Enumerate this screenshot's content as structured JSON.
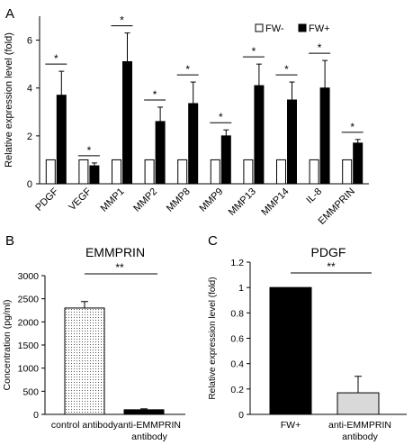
{
  "panels": {
    "a": {
      "letter": "A"
    },
    "b": {
      "letter": "B"
    },
    "c": {
      "letter": "C"
    }
  },
  "colors": {
    "black": "#000000",
    "white": "#ffffff",
    "light_gray": "#d9d9d9"
  },
  "chart_data": [
    {
      "id": "A",
      "type": "bar",
      "title": "",
      "xlabel": "",
      "ylabel": "Relative expression level (fold)",
      "ylim": [
        0,
        7
      ],
      "yticks": [
        "0",
        "2",
        "4",
        "6"
      ],
      "yticks_values": [
        0,
        2,
        4,
        6
      ],
      "grid": false,
      "legend_placement": "top-right",
      "categories": [
        "PDGF",
        "VEGF",
        "MMP1",
        "MMP2",
        "MMP8",
        "MMP9",
        "MMP13",
        "MMP14",
        "IL-8",
        "EMMPRIN"
      ],
      "series": [
        {
          "name": "FW-",
          "fill": "white",
          "values": [
            1,
            1,
            1,
            1,
            1,
            1,
            1,
            1,
            1,
            1
          ]
        },
        {
          "name": "FW+",
          "fill": "black",
          "values": [
            3.7,
            0.75,
            5.1,
            2.6,
            3.35,
            2.0,
            4.1,
            3.5,
            4.0,
            1.7
          ],
          "errors": [
            1.0,
            0.12,
            1.2,
            0.6,
            0.9,
            0.25,
            0.9,
            0.75,
            1.15,
            0.15
          ]
        }
      ],
      "significance": [
        "*",
        "*",
        "*",
        "*",
        "*",
        "*",
        "*",
        "*",
        "*",
        "*"
      ]
    },
    {
      "id": "B",
      "type": "bar",
      "title": "EMMPRIN",
      "xlabel": "",
      "ylabel": "Concentration (pg/ml)",
      "ylim": [
        0,
        3000
      ],
      "yticks": [
        "0",
        "500",
        "1000",
        "1500",
        "2000",
        "2500",
        "3000"
      ],
      "yticks_values": [
        0,
        500,
        1000,
        1500,
        2000,
        2500,
        3000
      ],
      "grid": false,
      "categories": [
        "control antibody",
        "anti-EMMPRIN antibody"
      ],
      "values": [
        2300,
        100
      ],
      "errors": [
        140,
        20
      ],
      "fills": [
        "dotted",
        "black"
      ],
      "significance": "**"
    },
    {
      "id": "C",
      "type": "bar",
      "title": "PDGF",
      "xlabel": "",
      "ylabel": "Relative expression level (fold)",
      "ylim": [
        0,
        1.2
      ],
      "yticks": [
        "0",
        "0.2",
        "0.4",
        "0.6",
        "0.8",
        "1",
        "1.2"
      ],
      "yticks_values": [
        0,
        0.2,
        0.4,
        0.6,
        0.8,
        1.0,
        1.2
      ],
      "grid": false,
      "categories": [
        "FW+",
        "anti-EMMPRIN antibody"
      ],
      "values": [
        1.0,
        0.17
      ],
      "errors": [
        0,
        0.13
      ],
      "fills": [
        "black",
        "light_gray"
      ],
      "significance": "**"
    }
  ]
}
